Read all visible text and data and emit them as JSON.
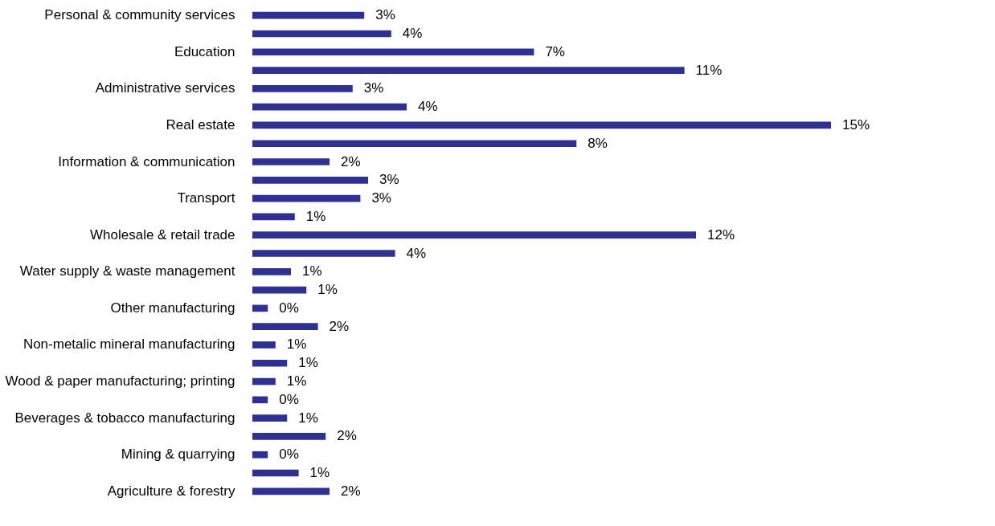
{
  "chart_data": {
    "type": "bar",
    "orientation": "horizontal",
    "categories": [
      "Personal & community services",
      null,
      "Education",
      null,
      "Administrative services",
      null,
      "Real estate",
      null,
      "Information & communication",
      null,
      "Transport",
      null,
      "Wholesale & retail trade",
      null,
      "Water supply & waste management",
      null,
      "Other manufacturing",
      null,
      "Non-metalic mineral manufacturing",
      null,
      "Wood & paper manufacturing; printing",
      null,
      "Beverages & tobacco manufacturing",
      null,
      "Mining & quarrying",
      null,
      "Agriculture & forestry"
    ],
    "values": [
      2.9,
      3.6,
      7.3,
      11.2,
      2.6,
      4.0,
      15.0,
      8.4,
      2.0,
      3.0,
      2.8,
      1.1,
      11.5,
      3.7,
      1.0,
      1.4,
      0.4,
      1.7,
      0.6,
      0.9,
      0.6,
      0.4,
      0.9,
      1.9,
      0.4,
      1.2,
      2.0
    ],
    "value_labels": [
      "3%",
      "4%",
      "7%",
      "11%",
      "3%",
      "4%",
      "15%",
      "8%",
      "2%",
      "3%",
      "3%",
      "1%",
      "12%",
      "4%",
      "1%",
      "1%",
      "0%",
      "2%",
      "1%",
      "1%",
      "1%",
      "0%",
      "1%",
      "2%",
      "0%",
      "1%",
      "2%"
    ],
    "color": "#2e3192",
    "xlim": [
      0,
      15
    ],
    "tick_labels": "y",
    "grid": false
  }
}
